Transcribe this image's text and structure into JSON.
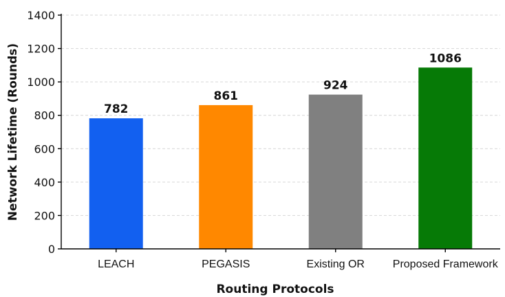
{
  "chart_data": {
    "type": "bar",
    "title": "",
    "xlabel": "Routing Protocols",
    "ylabel": "Network Lifetime (Rounds)",
    "categories": [
      "LEACH",
      "PEGASIS",
      "Existing OR",
      "Proposed Framework"
    ],
    "values": [
      782,
      861,
      924,
      1086
    ],
    "value_labels": [
      "782",
      "861",
      "924",
      "1086"
    ],
    "colors": [
      "#1260f0",
      "#ff8800",
      "#808080",
      "#067a06"
    ],
    "ylim": [
      0,
      1400
    ],
    "yticks": [
      0,
      200,
      400,
      600,
      800,
      1000,
      1200,
      1400
    ],
    "grid": "horizontal-dashed",
    "legend": "none"
  }
}
